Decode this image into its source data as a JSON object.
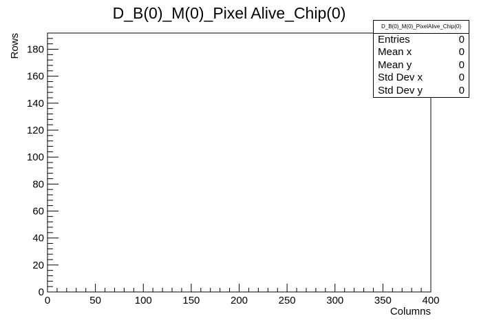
{
  "chart_data": {
    "type": "heatmap",
    "title": "D_B(0)_M(0)_Pixel Alive_Chip(0)",
    "xlabel": "Columns",
    "ylabel": "Rows",
    "xlim": [
      0,
      400
    ],
    "ylim": [
      0,
      192
    ],
    "x_ticks": [
      0,
      50,
      100,
      150,
      200,
      250,
      300,
      350,
      400
    ],
    "y_ticks": [
      0,
      20,
      40,
      60,
      80,
      100,
      120,
      140,
      160,
      180
    ],
    "x_minor_step": 10,
    "y_minor_step": 4,
    "values": [],
    "grid": false,
    "legend": "none"
  },
  "stats": {
    "title": "D_B(0)_M(0)_PixelAlive_Chip(0)",
    "rows": [
      {
        "label": "Entries",
        "value": "0"
      },
      {
        "label": "Mean x",
        "value": "0"
      },
      {
        "label": "Mean y",
        "value": "0"
      },
      {
        "label": "Std Dev x",
        "value": "0"
      },
      {
        "label": "Std Dev y",
        "value": "0"
      }
    ]
  }
}
